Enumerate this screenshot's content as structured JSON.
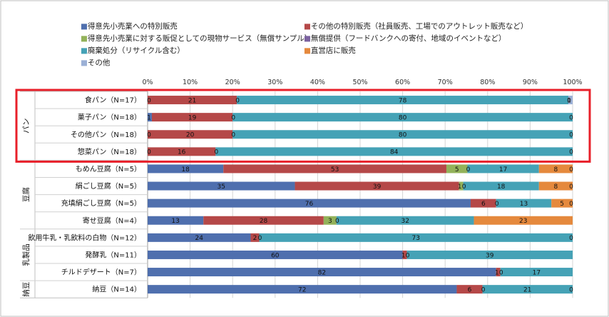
{
  "chart_data": {
    "type": "stacked-bar-horizontal-100",
    "legend": [
      {
        "label": "■得意先小売業への特別販売",
        "color": "#4F6FAE"
      },
      {
        "label": "■その他の特別販売（社員販売、工場でのアウトレット販売など）",
        "color": "#B54848"
      },
      {
        "label": "■得意先小売業に対する販促としての現物サービス（無償サンプル）",
        "color": "#93B25A"
      },
      {
        "label": "■無償提供（フードバンクへの寄付、地域のイベントなど）",
        "color": "#7B62A0"
      },
      {
        "label": "■廃棄処分（リサイクル含む）",
        "color": "#45A2B6"
      },
      {
        "label": "■直営店に販売",
        "color": "#E5893D"
      },
      {
        "label": "■その他",
        "color": "#9BB0D6"
      }
    ],
    "x_ticks": [
      "0%",
      "10%",
      "20%",
      "30%",
      "40%",
      "50%",
      "60%",
      "70%",
      "80%",
      "90%",
      "100%"
    ],
    "groups": [
      {
        "name": "パン",
        "rows": [
          0,
          3
        ]
      },
      {
        "name": "豆腐",
        "rows": [
          4,
          7
        ]
      },
      {
        "name": "乳製品",
        "rows": [
          8,
          10
        ]
      },
      {
        "name": "納豆",
        "rows": [
          11,
          11
        ]
      }
    ],
    "highlight_group": "パン",
    "rows": [
      {
        "label": "食パン（N=17）",
        "values": [
          0,
          21,
          0,
          0,
          78,
          0,
          1
        ],
        "labels": [
          "0",
          "21",
          "0",
          "",
          "78",
          "0",
          "1"
        ]
      },
      {
        "label": "菓子パン（N=18）",
        "values": [
          1,
          19,
          0,
          0,
          80,
          0,
          0
        ],
        "labels": [
          "1",
          "19",
          "0",
          "",
          "80",
          "",
          "0"
        ]
      },
      {
        "label": "その他パン（N=18）",
        "values": [
          0,
          20,
          0,
          0,
          80,
          0,
          0
        ],
        "labels": [
          "0",
          "20",
          "0",
          "",
          "80",
          "",
          "0"
        ]
      },
      {
        "label": "惣菜パン（N=18）",
        "values": [
          0,
          16,
          0,
          0,
          84,
          0,
          0
        ],
        "labels": [
          "0",
          "16",
          "0",
          "",
          "84",
          "",
          "0"
        ]
      },
      {
        "label": "もめん豆腐（N=5）",
        "values": [
          18,
          53,
          5,
          0,
          17,
          8,
          0
        ],
        "labels": [
          "18",
          "53",
          "5",
          "0",
          "17",
          "8",
          "0"
        ]
      },
      {
        "label": "絹ごし豆腐（N=5）",
        "values": [
          35,
          39,
          1,
          0,
          18,
          8,
          0
        ],
        "labels": [
          "35",
          "39",
          "1",
          "0",
          "18",
          "8",
          "0"
        ]
      },
      {
        "label": "充填絹ごし豆腐（N=5）",
        "values": [
          76,
          6,
          0,
          0,
          13,
          5,
          0
        ],
        "labels": [
          "76",
          "6",
          "0",
          "",
          "13",
          "5",
          "0"
        ]
      },
      {
        "label": "寄せ豆腐（N=4）",
        "values": [
          13,
          28,
          3,
          0,
          32,
          23,
          0
        ],
        "labels": [
          "13",
          "28",
          "3",
          "0",
          "32",
          "23",
          ""
        ]
      },
      {
        "label": "飲用牛乳・乳飲料の白物（N=12）",
        "values": [
          24,
          2,
          0,
          0,
          73,
          0,
          0
        ],
        "labels": [
          "24",
          "2",
          "0",
          "",
          "73",
          "",
          "0"
        ]
      },
      {
        "label": "発酵乳（N=11）",
        "values": [
          60,
          1,
          0,
          0,
          39,
          0,
          0
        ],
        "labels": [
          "60",
          "1",
          "0",
          "",
          "39",
          "",
          ""
        ]
      },
      {
        "label": "チルドデザート（N=7）",
        "values": [
          82,
          1,
          0,
          0,
          17,
          0,
          0
        ],
        "labels": [
          "82",
          "1",
          "0",
          "",
          "17",
          "",
          ""
        ]
      },
      {
        "label": "納豆（N=14）",
        "values": [
          72,
          6,
          0,
          0,
          21,
          0,
          0
        ],
        "labels": [
          "72",
          "6",
          "0",
          "",
          "21",
          "",
          "0"
        ]
      }
    ]
  }
}
